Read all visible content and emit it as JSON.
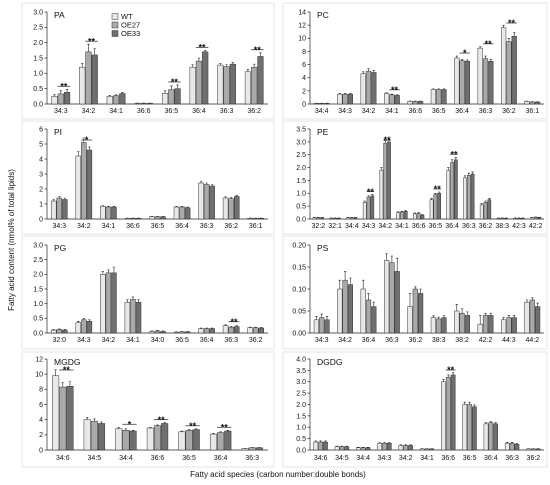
{
  "axes": {
    "ylabel": "Fatty acid content (nmol% of total lipids)",
    "xlabel": "Fatty acid species (carbon number:double bonds)"
  },
  "colors": {
    "WT": "#e8e8e8",
    "OE27": "#a9a9a9",
    "OE33": "#6f6f6f",
    "outline": "#333333"
  },
  "chart_data": [
    {
      "type": "bar",
      "title": "PA",
      "grid": false,
      "legend_placement": "top-center",
      "ylim": [
        0,
        3.0
      ],
      "yticks": [
        "0.0",
        "0.5",
        "1.0",
        "1.5",
        "2.0",
        "2.5",
        "3.0"
      ],
      "categories": [
        "34:3",
        "34:2",
        "34:1",
        "36:6",
        "36:5",
        "36:4",
        "36:3",
        "36:2"
      ],
      "series": [
        {
          "name": "WT",
          "values": [
            0.25,
            1.2,
            0.25,
            0.02,
            0.35,
            1.2,
            1.27,
            1.05
          ],
          "errors": [
            0.05,
            0.12,
            0.03,
            0.01,
            0.08,
            0.08,
            0.05,
            0.08
          ]
        },
        {
          "name": "OE27",
          "values": [
            0.33,
            1.7,
            0.27,
            0.02,
            0.47,
            1.4,
            1.22,
            1.2
          ],
          "errors": [
            0.1,
            0.25,
            0.03,
            0.01,
            0.12,
            0.1,
            0.06,
            0.1
          ]
        },
        {
          "name": "OE33",
          "values": [
            0.38,
            1.6,
            0.34,
            0.02,
            0.5,
            1.7,
            1.3,
            1.55
          ],
          "errors": [
            0.1,
            0.2,
            0.04,
            0.01,
            0.12,
            0.05,
            0.05,
            0.12
          ]
        }
      ],
      "significance": [
        {
          "category": "34:3",
          "mark": "**"
        },
        {
          "category": "34:2",
          "mark": "**"
        },
        {
          "category": "36:5",
          "mark": "**"
        },
        {
          "category": "36:4",
          "mark": "**"
        },
        {
          "category": "36:2",
          "mark": "**"
        }
      ]
    },
    {
      "type": "bar",
      "title": "PC",
      "grid": false,
      "ylim": [
        0,
        14
      ],
      "yticks": [
        "0",
        "2",
        "4",
        "6",
        "8",
        "10",
        "12",
        "14"
      ],
      "categories": [
        "34:4",
        "34:3",
        "34:2",
        "34:1",
        "36:6",
        "36:5",
        "36:4",
        "36:3",
        "36:2",
        "36:1"
      ],
      "series": [
        {
          "name": "WT",
          "values": [
            0.1,
            1.5,
            4.6,
            1.6,
            0.4,
            2.2,
            7.0,
            8.5,
            11.6,
            0.4
          ],
          "errors": [
            0.02,
            0.1,
            0.3,
            0.1,
            0.05,
            0.1,
            0.3,
            0.2,
            0.4,
            0.05
          ]
        },
        {
          "name": "OE27",
          "values": [
            0.1,
            1.5,
            5.0,
            1.4,
            0.4,
            2.2,
            6.6,
            6.9,
            9.5,
            0.3
          ],
          "errors": [
            0.02,
            0.1,
            0.35,
            0.1,
            0.05,
            0.1,
            0.2,
            0.4,
            0.5,
            0.05
          ]
        },
        {
          "name": "OE33",
          "values": [
            0.1,
            1.5,
            4.8,
            1.3,
            0.4,
            2.2,
            6.5,
            6.5,
            10.3,
            0.3
          ],
          "errors": [
            0.02,
            0.1,
            0.3,
            0.1,
            0.05,
            0.1,
            0.2,
            0.3,
            0.6,
            0.05
          ]
        }
      ],
      "significance": [
        {
          "category": "34:1",
          "mark": "**"
        },
        {
          "category": "36:4",
          "mark": "*"
        },
        {
          "category": "36:3",
          "mark": "**"
        },
        {
          "category": "36:2",
          "mark": "**"
        }
      ]
    },
    {
      "type": "bar",
      "title": "PI",
      "grid": false,
      "ylim": [
        0,
        6
      ],
      "yticks": [
        "0",
        "1",
        "2",
        "3",
        "4",
        "5",
        "6"
      ],
      "categories": [
        "34:3",
        "34:2",
        "34:1",
        "36:6",
        "36:5",
        "36:4",
        "36:3",
        "36:2",
        "36:1"
      ],
      "series": [
        {
          "name": "WT",
          "values": [
            1.2,
            4.2,
            0.85,
            0.05,
            0.15,
            0.8,
            2.4,
            1.4,
            0.05
          ],
          "errors": [
            0.1,
            0.3,
            0.05,
            0.01,
            0.02,
            0.05,
            0.1,
            0.08,
            0.01
          ]
        },
        {
          "name": "OE27",
          "values": [
            1.4,
            5.1,
            0.8,
            0.05,
            0.15,
            0.8,
            2.3,
            1.35,
            0.05
          ],
          "errors": [
            0.1,
            0.3,
            0.05,
            0.01,
            0.02,
            0.05,
            0.1,
            0.08,
            0.01
          ]
        },
        {
          "name": "OE33",
          "values": [
            1.3,
            4.6,
            0.8,
            0.05,
            0.15,
            0.75,
            2.2,
            1.5,
            0.05
          ],
          "errors": [
            0.1,
            0.2,
            0.05,
            0.01,
            0.02,
            0.05,
            0.1,
            0.08,
            0.01
          ]
        }
      ],
      "significance": [
        {
          "category": "34:2",
          "mark": "*"
        }
      ]
    },
    {
      "type": "bar",
      "title": "PE",
      "grid": false,
      "ylim": [
        0,
        3.5
      ],
      "yticks": [
        "0.0",
        "0.5",
        "1.0",
        "1.5",
        "2.0",
        "2.5",
        "3.0",
        "3.5"
      ],
      "categories": [
        "32:2",
        "32:1",
        "34:4",
        "34:3",
        "34:2",
        "34:1",
        "36:6",
        "36:5",
        "36:4",
        "36:3",
        "36:2",
        "38:3",
        "42:3",
        "42:2"
      ],
      "series": [
        {
          "name": "WT",
          "values": [
            0.05,
            0.03,
            0.05,
            0.65,
            1.9,
            0.25,
            0.2,
            0.75,
            1.9,
            1.6,
            0.55,
            0.03,
            0.03,
            0.05
          ],
          "errors": [
            0.01,
            0.01,
            0.01,
            0.05,
            0.1,
            0.03,
            0.03,
            0.05,
            0.1,
            0.08,
            0.05,
            0.01,
            0.01,
            0.01
          ]
        },
        {
          "name": "OE27",
          "values": [
            0.05,
            0.03,
            0.05,
            0.85,
            2.95,
            0.27,
            0.22,
            0.95,
            2.2,
            1.7,
            0.65,
            0.03,
            0.03,
            0.07
          ],
          "errors": [
            0.01,
            0.01,
            0.01,
            0.05,
            0.1,
            0.03,
            0.03,
            0.05,
            0.1,
            0.08,
            0.05,
            0.01,
            0.01,
            0.01
          ]
        },
        {
          "name": "OE33",
          "values": [
            0.05,
            0.03,
            0.05,
            0.9,
            3.0,
            0.3,
            0.15,
            1.0,
            2.3,
            1.75,
            0.75,
            0.03,
            0.03,
            0.06
          ],
          "errors": [
            0.01,
            0.01,
            0.01,
            0.05,
            0.1,
            0.03,
            0.03,
            0.05,
            0.1,
            0.08,
            0.05,
            0.01,
            0.01,
            0.01
          ]
        }
      ],
      "significance": [
        {
          "category": "34:3",
          "mark": "**"
        },
        {
          "category": "34:2",
          "mark": "**"
        },
        {
          "category": "36:5",
          "mark": "**"
        },
        {
          "category": "36:4",
          "mark": "**"
        }
      ]
    },
    {
      "type": "bar",
      "title": "PG",
      "grid": false,
      "ylim": [
        0,
        3.0
      ],
      "yticks": [
        "0.0",
        "0.5",
        "1.0",
        "1.5",
        "2.0",
        "2.5",
        "3.0"
      ],
      "categories": [
        "32:0",
        "34:3",
        "34:2",
        "34:1",
        "34:0",
        "36:5",
        "36:4",
        "36:3",
        "36:2"
      ],
      "series": [
        {
          "name": "WT",
          "values": [
            0.1,
            0.35,
            2.0,
            1.05,
            0.05,
            0.03,
            0.15,
            0.25,
            0.18
          ],
          "errors": [
            0.02,
            0.05,
            0.1,
            0.08,
            0.02,
            0.01,
            0.02,
            0.03,
            0.02
          ]
        },
        {
          "name": "OE27",
          "values": [
            0.12,
            0.45,
            2.05,
            1.15,
            0.07,
            0.04,
            0.15,
            0.2,
            0.18
          ],
          "errors": [
            0.02,
            0.05,
            0.1,
            0.08,
            0.02,
            0.01,
            0.02,
            0.03,
            0.02
          ]
        },
        {
          "name": "OE33",
          "values": [
            0.1,
            0.4,
            2.05,
            1.05,
            0.05,
            0.04,
            0.15,
            0.22,
            0.17
          ],
          "errors": [
            0.02,
            0.05,
            0.2,
            0.08,
            0.02,
            0.01,
            0.02,
            0.03,
            0.02
          ]
        }
      ],
      "significance": [
        {
          "category": "36:3",
          "mark": "**"
        }
      ]
    },
    {
      "type": "bar",
      "title": "PS",
      "grid": false,
      "ylim": [
        0,
        0.2
      ],
      "yticks": [
        "0.00",
        "0.05",
        "0.10",
        "0.15",
        "0.20"
      ],
      "categories": [
        "34:3",
        "34:2",
        "36:4",
        "36:3",
        "36:2",
        "38:3",
        "38:2",
        "42:2",
        "44:3",
        "44:2"
      ],
      "series": [
        {
          "name": "WT",
          "values": [
            0.03,
            0.1,
            0.1,
            0.165,
            0.06,
            0.035,
            0.05,
            0.02,
            0.03,
            0.07
          ],
          "errors": [
            0.008,
            0.02,
            0.02,
            0.015,
            0.03,
            0.004,
            0.015,
            0.02,
            0.005,
            0.005
          ]
        },
        {
          "name": "OE27",
          "values": [
            0.035,
            0.12,
            0.075,
            0.16,
            0.1,
            0.032,
            0.045,
            0.04,
            0.035,
            0.075
          ],
          "errors": [
            0.008,
            0.02,
            0.015,
            0.015,
            0.005,
            0.004,
            0.01,
            0.005,
            0.005,
            0.005
          ]
        },
        {
          "name": "OE33",
          "values": [
            0.03,
            0.11,
            0.06,
            0.14,
            0.09,
            0.035,
            0.04,
            0.04,
            0.035,
            0.06
          ],
          "errors": [
            0.008,
            0.015,
            0.01,
            0.03,
            0.01,
            0.004,
            0.008,
            0.005,
            0.005,
            0.008
          ]
        }
      ],
      "significance": []
    },
    {
      "type": "bar",
      "title": "MGDG",
      "grid": false,
      "ylim": [
        0,
        12
      ],
      "yticks": [
        "0",
        "2",
        "4",
        "6",
        "8",
        "10",
        "12"
      ],
      "categories": [
        "34:6",
        "34:5",
        "34:4",
        "36:6",
        "36:5",
        "36:4",
        "36:3"
      ],
      "series": [
        {
          "name": "WT",
          "values": [
            9.8,
            4.0,
            2.8,
            2.9,
            2.4,
            2.1,
            0.2
          ],
          "errors": [
            0.8,
            0.3,
            0.2,
            0.1,
            0.1,
            0.1,
            0.03
          ]
        },
        {
          "name": "OE27",
          "values": [
            8.3,
            3.8,
            2.6,
            3.2,
            2.6,
            2.3,
            0.3
          ],
          "errors": [
            0.6,
            0.3,
            0.2,
            0.1,
            0.1,
            0.1,
            0.03
          ]
        },
        {
          "name": "OE33",
          "values": [
            8.4,
            3.5,
            2.5,
            3.5,
            2.7,
            2.5,
            0.3
          ],
          "errors": [
            0.6,
            0.2,
            0.1,
            0.1,
            0.1,
            0.1,
            0.03
          ]
        }
      ],
      "significance": [
        {
          "category": "34:6",
          "mark": "**"
        },
        {
          "category": "34:4",
          "mark": "*"
        },
        {
          "category": "36:6",
          "mark": "**"
        },
        {
          "category": "36:5",
          "mark": "**"
        },
        {
          "category": "36:4",
          "mark": "**"
        }
      ]
    },
    {
      "type": "bar",
      "title": "DGDG",
      "grid": false,
      "ylim": [
        0,
        4.0
      ],
      "yticks": [
        "0.0",
        "0.5",
        "1.0",
        "1.5",
        "2.0",
        "2.5",
        "3.0",
        "3.5",
        "4.0"
      ],
      "categories": [
        "34:6",
        "34:5",
        "34:4",
        "34:3",
        "34:2",
        "34:1",
        "36:6",
        "36:5",
        "36:4",
        "36:3",
        "36:2"
      ],
      "series": [
        {
          "name": "WT",
          "values": [
            0.35,
            0.15,
            0.1,
            0.3,
            0.2,
            0.05,
            3.0,
            2.0,
            1.15,
            0.3,
            0.05
          ],
          "errors": [
            0.05,
            0.02,
            0.02,
            0.03,
            0.03,
            0.01,
            0.1,
            0.1,
            0.05,
            0.04,
            0.01
          ]
        },
        {
          "name": "OE27",
          "values": [
            0.35,
            0.15,
            0.1,
            0.3,
            0.2,
            0.05,
            3.2,
            2.0,
            1.2,
            0.3,
            0.05
          ],
          "errors": [
            0.05,
            0.02,
            0.02,
            0.03,
            0.03,
            0.01,
            0.1,
            0.1,
            0.05,
            0.04,
            0.01
          ]
        },
        {
          "name": "OE33",
          "values": [
            0.35,
            0.15,
            0.1,
            0.3,
            0.2,
            0.05,
            3.3,
            1.9,
            1.15,
            0.25,
            0.05
          ],
          "errors": [
            0.05,
            0.02,
            0.02,
            0.03,
            0.03,
            0.01,
            0.1,
            0.08,
            0.05,
            0.04,
            0.01
          ]
        }
      ],
      "significance": [
        {
          "category": "36:6",
          "mark": "**"
        }
      ]
    }
  ]
}
